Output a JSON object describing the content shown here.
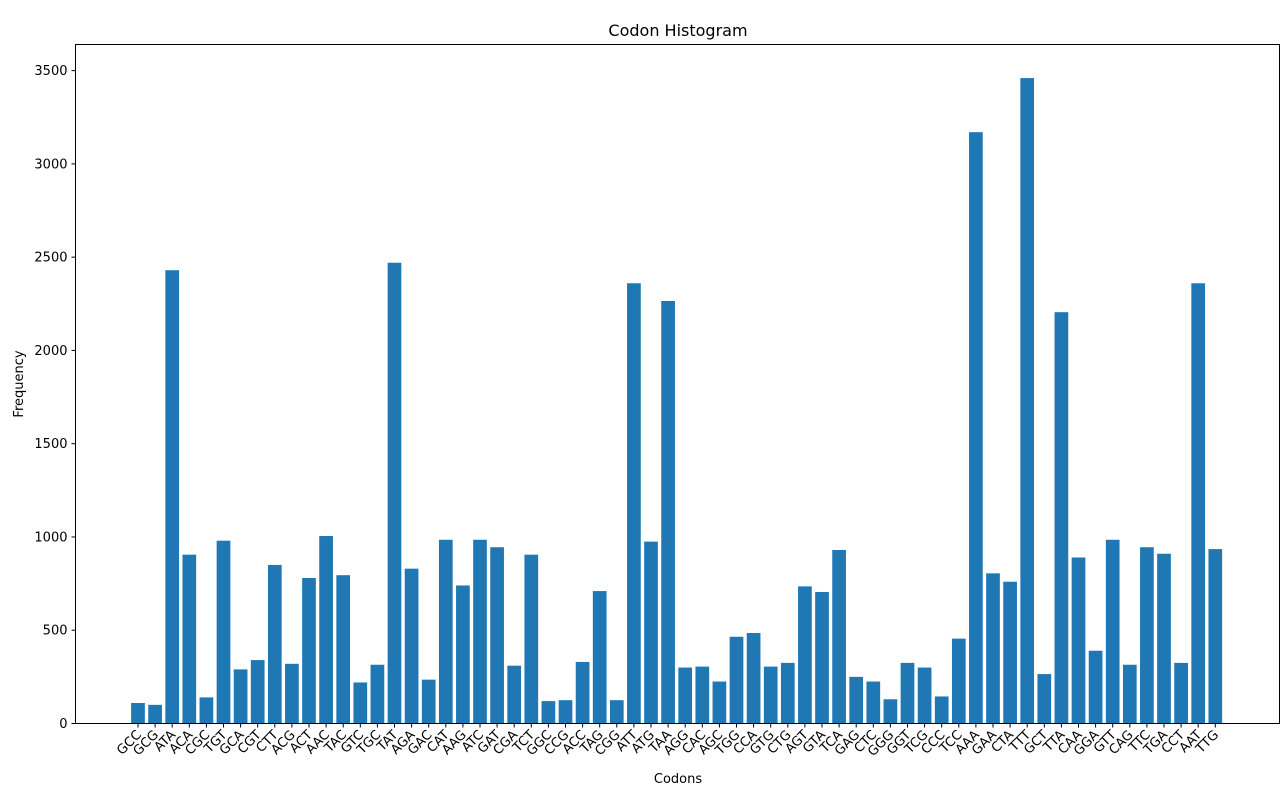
{
  "chart_data": {
    "type": "bar",
    "title": "Codon Histogram",
    "xlabel": "Codons",
    "ylabel": "Frequency",
    "ylim": [
      0,
      3640
    ],
    "yticks": [
      0,
      500,
      1000,
      1500,
      2000,
      2500,
      3000,
      3500
    ],
    "grid": false,
    "bar_color": "#1f77b4",
    "categories": [
      "GCC",
      "GCG",
      "ATA",
      "ACA",
      "CGC",
      "TGT",
      "GCA",
      "CGT",
      "CTT",
      "ACG",
      "ACT",
      "AAC",
      "TAC",
      "GTC",
      "TGC",
      "TAT",
      "AGA",
      "GAC",
      "CAT",
      "AAG",
      "ATC",
      "GAT",
      "CGA",
      "TCT",
      "GGC",
      "CCG",
      "ACC",
      "TAG",
      "CGG",
      "ATT",
      "ATG",
      "TAA",
      "AGG",
      "CAC",
      "AGC",
      "TGG",
      "CCA",
      "GTG",
      "CTG",
      "AGT",
      "GTA",
      "TCA",
      "GAG",
      "CTC",
      "GGG",
      "GGT",
      "TCG",
      "CCC",
      "TCC",
      "AAA",
      "GAA",
      "CTA",
      "TTT",
      "GCT",
      "TTA",
      "CAA",
      "GGA",
      "GTT",
      "CAG",
      "TTC",
      "TGA",
      "CCT",
      "AAT",
      "TTG"
    ],
    "values": [
      110,
      100,
      2430,
      905,
      140,
      980,
      290,
      340,
      850,
      320,
      780,
      1005,
      795,
      220,
      315,
      2470,
      830,
      235,
      985,
      740,
      985,
      945,
      310,
      905,
      120,
      125,
      330,
      710,
      125,
      2360,
      975,
      2265,
      300,
      305,
      225,
      465,
      485,
      305,
      325,
      735,
      705,
      930,
      250,
      225,
      130,
      325,
      300,
      145,
      455,
      3170,
      805,
      760,
      3460,
      265,
      2205,
      890,
      390,
      985,
      315,
      945,
      910,
      325,
      2360,
      935
    ]
  }
}
